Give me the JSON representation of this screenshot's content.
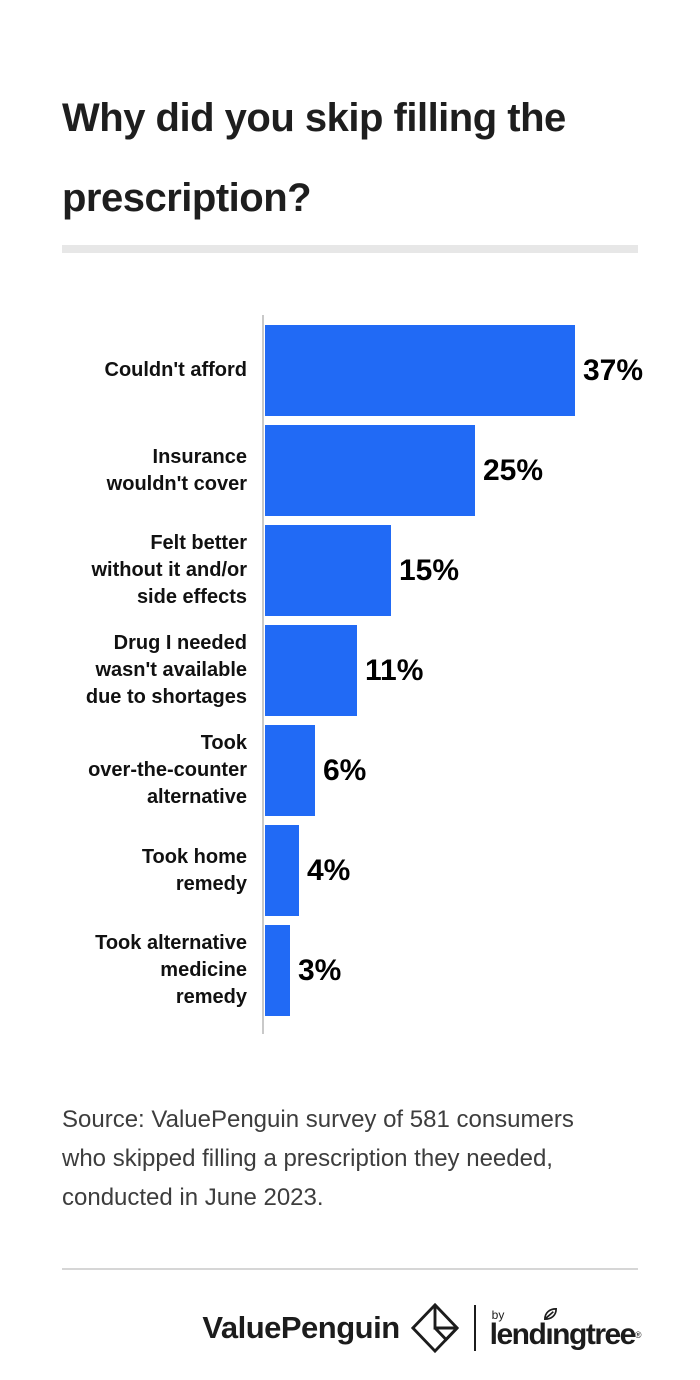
{
  "title": "Why did you skip filling the\nprescription?",
  "chart_data": {
    "type": "bar",
    "orientation": "horizontal",
    "title": "Why did you skip filling the prescription?",
    "categories": [
      "Couldn't afford",
      "Insurance\nwouldn't cover",
      "Felt better\nwithout it and/or\nside effects",
      "Drug I needed\nwasn't available\ndue to shortages",
      "Took\nover-the-counter\nalternative",
      "Took home\nremedy",
      "Took alternative\nmedicine\nremedy"
    ],
    "values": [
      37,
      25,
      15,
      11,
      6,
      4,
      3
    ],
    "value_labels": [
      "37%",
      "25%",
      "15%",
      "11%",
      "6%",
      "4%",
      "3%"
    ],
    "xlim": [
      0,
      40
    ],
    "grid": false,
    "legend": false,
    "bar_color": "#216af5",
    "axis_color": "#c9c9c9"
  },
  "source": {
    "text": "Source: ValuePenguin survey of 581 consumers\nwho skipped filling a prescription they needed,\nconducted in June 2023."
  },
  "footer": {
    "valuepenguin_label": "ValuePenguin",
    "by_label": "by",
    "lendingtree_prefix": "lend",
    "lendingtree_i": "ı",
    "lendingtree_suffix": "ngtree",
    "reg_mark": "®",
    "logo_color": "#1c1c1c"
  }
}
